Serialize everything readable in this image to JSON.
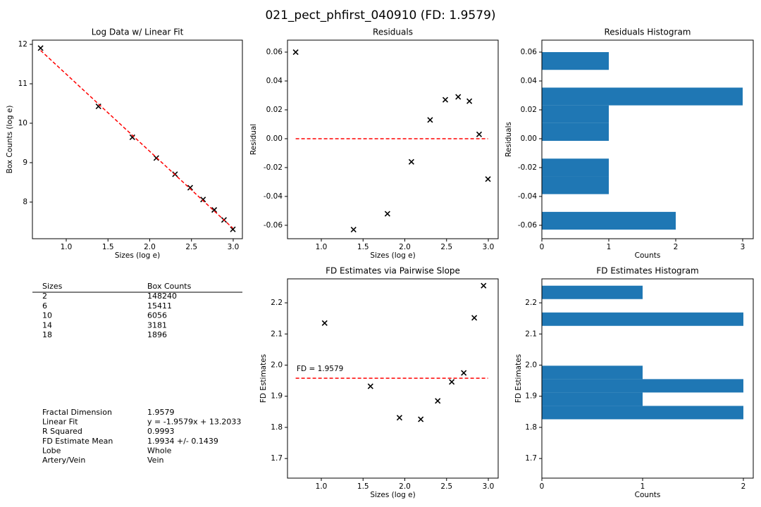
{
  "title": "021_pect_phfirst_040910 (FD: 1.9579)",
  "chart_data": [
    {
      "type": "scatter",
      "title": "Log Data w/ Linear Fit",
      "x_label": "Sizes (log e)",
      "y_label": "Box Counts (log e)",
      "series": [
        {
          "color": "#000000",
          "marker": "x",
          "x": [
            0.693,
            1.386,
            1.792,
            2.079,
            2.303,
            2.485,
            2.639,
            2.773,
            2.89,
            2.996
          ],
          "values": [
            11.906,
            10.427,
            9.643,
            9.117,
            8.707,
            8.365,
            8.066,
            7.801,
            7.548,
            7.309
          ]
        },
        {
          "color": "#ff0000",
          "line_style": "dashed",
          "x": [
            0.693,
            2.996
          ],
          "values": [
            11.846,
            7.337
          ]
        }
      ],
      "xlim": [
        0.595,
        3.11
      ],
      "xticks": [
        {
          "value": 1,
          "label": "1.0"
        },
        1.5,
        {
          "value": 2,
          "label": "2.0"
        },
        2.5,
        {
          "value": 3,
          "label": "3.0"
        }
      ],
      "ylim": [
        7.071,
        12.107
      ],
      "yticks": [
        8,
        9,
        10,
        11,
        12
      ]
    },
    {
      "type": "scatter",
      "title": "Residuals",
      "x_label": "Sizes (log e)",
      "y_label": "Residual",
      "series": [
        {
          "color": "#000000",
          "marker": "x",
          "x": [
            0.693,
            1.386,
            1.792,
            2.079,
            2.303,
            2.485,
            2.639,
            2.773,
            2.89,
            2.996
          ],
          "values": [
            0.06,
            -0.063,
            -0.052,
            -0.016,
            0.013,
            0.027,
            0.029,
            0.026,
            0.003,
            -0.028
          ]
        },
        {
          "color": "#ff0000",
          "line_style": "dashed",
          "x": [
            0.693,
            2.996
          ],
          "values": [
            0,
            0
          ]
        }
      ],
      "xlim": [
        0.595,
        3.118
      ],
      "xticks": [
        {
          "value": 1,
          "label": "1.0"
        },
        1.5,
        {
          "value": 2,
          "label": "2.0"
        },
        2.5,
        {
          "value": 3,
          "label": "3.0"
        }
      ],
      "ylim": [
        -0.0693,
        0.0683
      ],
      "yticks": [
        -0.06,
        -0.04,
        -0.02,
        {
          "value": 0,
          "label": "0.00"
        },
        0.02,
        0.04,
        0.06
      ]
    },
    {
      "type": "histogram",
      "orientation": "horizontal",
      "title": "Residuals Histogram",
      "x_label": "Counts",
      "y_label": "Residuals",
      "color": "#1f77b4",
      "bins": [
        -0.063,
        -0.0507,
        -0.0384,
        -0.0261,
        -0.0138,
        -0.0015,
        0.0108,
        0.0231,
        0.0354,
        0.0477,
        0.06
      ],
      "values": [
        2,
        0,
        1,
        1,
        0,
        1,
        1,
        3,
        0,
        1
      ],
      "xlim": [
        0,
        3.158
      ],
      "xticks": [
        0,
        1,
        2,
        3
      ],
      "ylim": [
        -0.0693,
        0.0683
      ],
      "yticks": [
        -0.06,
        -0.04,
        -0.02,
        {
          "value": 0,
          "label": "0.00"
        },
        0.02,
        0.04,
        0.06
      ]
    },
    {
      "type": "scatter",
      "title": "FD Estimates via Pairwise Slope",
      "x_label": "Sizes (log e)",
      "y_label": "FD Estimates",
      "annotation": "FD = 1.9579",
      "series": [
        {
          "color": "#000000",
          "marker": "x",
          "x": [
            1.04,
            1.589,
            1.936,
            2.191,
            2.394,
            2.562,
            2.706,
            2.832,
            2.943
          ],
          "values": [
            2.135,
            1.932,
            1.831,
            1.826,
            1.885,
            1.946,
            1.975,
            2.152,
            2.255
          ]
        },
        {
          "color": "#ff0000",
          "line_style": "dashed",
          "x": [
            0.693,
            2.996
          ],
          "values": [
            1.9579,
            1.9579
          ]
        }
      ],
      "xlim": [
        0.595,
        3.118
      ],
      "xticks": [
        {
          "value": 1,
          "label": "1.0"
        },
        1.5,
        {
          "value": 2,
          "label": "2.0"
        },
        2.5,
        {
          "value": 3,
          "label": "3.0"
        }
      ],
      "ylim": [
        1.637,
        2.277
      ],
      "yticks": [
        1.7,
        1.8,
        1.9,
        {
          "value": 2,
          "label": "2.0"
        },
        2.1,
        2.2
      ]
    },
    {
      "type": "histogram",
      "orientation": "horizontal",
      "title": "FD Estimates Histogram",
      "x_label": "Counts",
      "y_label": "FD Estimates",
      "color": "#1f77b4",
      "bins": [
        1.826,
        1.869,
        1.912,
        1.955,
        1.998,
        2.041,
        2.084,
        2.126,
        2.169,
        2.212,
        2.255
      ],
      "values": [
        2,
        1,
        2,
        1,
        0,
        0,
        0,
        2,
        0,
        1
      ],
      "xlim": [
        0,
        2.098
      ],
      "xticks": [
        0,
        1,
        2
      ],
      "ylim": [
        1.637,
        2.277
      ],
      "yticks": [
        1.7,
        1.8,
        1.9,
        {
          "value": 2,
          "label": "2.0"
        },
        2.1,
        2.2
      ]
    }
  ],
  "table": {
    "columns": [
      "Sizes",
      "Box Counts"
    ],
    "rows": [
      [
        2,
        148240
      ],
      [
        6,
        15411
      ],
      [
        10,
        6056
      ],
      [
        14,
        3181
      ],
      [
        18,
        1896
      ]
    ]
  },
  "summary": {
    "rows": [
      [
        "Fractal Dimension",
        "1.9579"
      ],
      [
        "Linear Fit",
        "y = -1.9579x + 13.2033"
      ],
      [
        "R Squared",
        "0.9993"
      ],
      [
        "FD Estimate Mean",
        "1.9934 +/- 0.1439"
      ],
      [
        "Lobe",
        "Whole"
      ],
      [
        "Artery/Vein",
        "Vein"
      ]
    ]
  }
}
